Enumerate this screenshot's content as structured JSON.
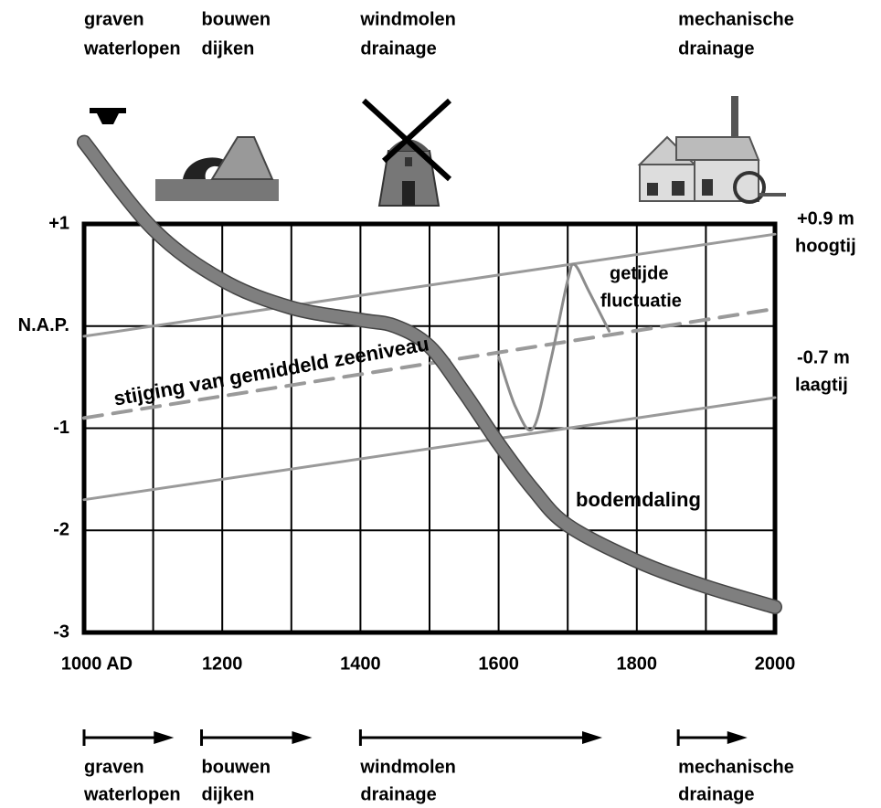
{
  "chart_data": {
    "type": "line",
    "xlim": [
      1000,
      2000
    ],
    "ylim": [
      -3,
      1
    ],
    "xticks": [
      {
        "value": 1000,
        "label": "1000 AD"
      },
      1200,
      1400,
      1600,
      1800,
      2000
    ],
    "x_minor_ticks": [
      1100,
      1300,
      1500,
      1700,
      1900
    ],
    "yticks": [
      {
        "value": 1,
        "label": "+1"
      },
      {
        "value": 0,
        "label": "N.A.P."
      },
      -1,
      -2,
      -3
    ],
    "grid": true,
    "series": [
      {
        "color": "#9a9a9a",
        "style": "solid",
        "x": [
          1000,
          2000
        ],
        "values": [
          -0.1,
          0.9
        ]
      },
      {
        "color": "#9a9a9a",
        "style": "dashed",
        "x": [
          1000,
          2000
        ],
        "values": [
          -0.9,
          0.17
        ]
      },
      {
        "color": "#9a9a9a",
        "style": "solid",
        "x": [
          1000,
          2000
        ],
        "values": [
          -1.7,
          -0.7
        ]
      },
      {
        "color": "#7f7f7f",
        "style": "thick",
        "x": [
          1000,
          1100,
          1200,
          1300,
          1400,
          1450,
          1500,
          1550,
          1600,
          1650,
          1700,
          1800,
          1900,
          2000
        ],
        "values": [
          1.8,
          0.95,
          0.45,
          0.18,
          0.06,
          0.0,
          -0.2,
          -0.65,
          -1.15,
          -1.6,
          -1.95,
          -2.3,
          -2.55,
          -2.75
        ]
      },
      {
        "color": "#8c8c8c",
        "style": "thin",
        "x": [
          1600,
          1625,
          1650,
          1675,
          1700,
          1710,
          1730,
          1760
        ],
        "values": [
          -0.3,
          -0.8,
          -1.0,
          -0.35,
          0.45,
          0.6,
          0.35,
          -0.05
        ]
      }
    ],
    "annotations": {
      "hoogtij": [
        "+0.9 m",
        "hoogtij"
      ],
      "laagtij": [
        "-0.7 m",
        "laagtij"
      ],
      "zeeniveau": "stijging van gemiddeld zeeniveau",
      "getijde": [
        "getijde",
        "fluctuatie"
      ],
      "bodemdaling": "bodemdaling"
    },
    "periods": [
      {
        "label": [
          "graven",
          "waterlopen"
        ],
        "start": 1000,
        "end": 1130
      },
      {
        "label": [
          "bouwen",
          "dijken"
        ],
        "start": 1170,
        "end": 1330
      },
      {
        "label": [
          "windmolen",
          "drainage"
        ],
        "start": 1400,
        "end": 1750
      },
      {
        "label": [
          "mechanische",
          "drainage"
        ],
        "start": 1860,
        "end": 1960
      }
    ]
  }
}
